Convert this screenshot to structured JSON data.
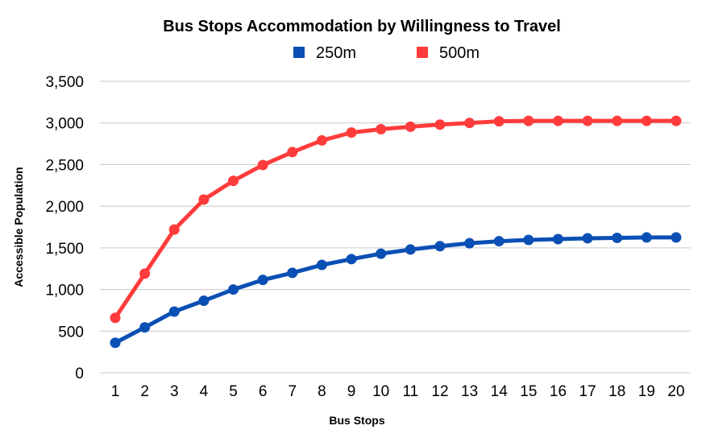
{
  "chart_data": {
    "type": "line",
    "title": "Bus Stops Accommodation by Willingness to Travel",
    "xlabel": "Bus Stops",
    "ylabel": "Accessible Population",
    "categories": [
      "1",
      "2",
      "3",
      "4",
      "5",
      "6",
      "7",
      "8",
      "9",
      "10",
      "11",
      "12",
      "13",
      "14",
      "15",
      "16",
      "17",
      "18",
      "19",
      "20"
    ],
    "ylim": [
      0,
      3500
    ],
    "yticks": [
      0,
      500,
      1000,
      1500,
      2000,
      2500,
      3000,
      3500
    ],
    "ytick_labels": [
      "0",
      "500",
      "1,000",
      "1,500",
      "2,000",
      "2,500",
      "3,000",
      "3,500"
    ],
    "grid": true,
    "legend_position": "top",
    "series": [
      {
        "name": "250m",
        "color": "#0a4fb4",
        "values": [
          360,
          545,
          735,
          865,
          1000,
          1115,
          1200,
          1295,
          1365,
          1430,
          1480,
          1520,
          1555,
          1580,
          1595,
          1605,
          1615,
          1620,
          1625,
          1625
        ]
      },
      {
        "name": "500m",
        "color": "#ff3b3b",
        "values": [
          660,
          1190,
          1720,
          2080,
          2305,
          2495,
          2650,
          2790,
          2885,
          2925,
          2955,
          2980,
          3000,
          3020,
          3025,
          3025,
          3025,
          3025,
          3025,
          3025
        ]
      }
    ]
  }
}
